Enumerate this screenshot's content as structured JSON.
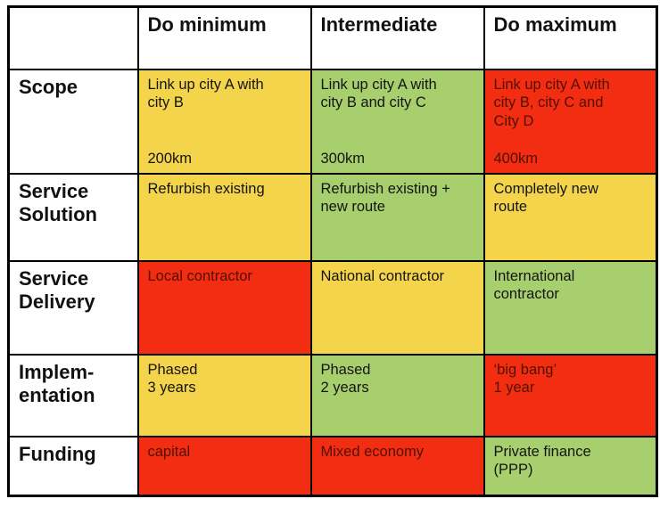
{
  "palette": {
    "yellow": "#F4D44B",
    "green": "#A7CF6E",
    "red": "#F32D11",
    "red_cell_text": "#511005",
    "text": "#141414",
    "border": "#000000",
    "background": "#FFFFFF"
  },
  "table": {
    "columns": [
      "",
      "Do minimum",
      "Intermediate",
      "Do maximum"
    ],
    "rows": [
      {
        "label": "Scope",
        "cells": [
          {
            "text": "Link up city A with\ncity B",
            "footer": "200km",
            "color": "yellow"
          },
          {
            "text": "Link up city A with\ncity B and city C",
            "footer": "300km",
            "color": "green"
          },
          {
            "text": "Link up city A with\ncity B, city C and\nCity D",
            "footer": "400km",
            "color": "red"
          }
        ]
      },
      {
        "label": "Service\nSolution",
        "cells": [
          {
            "text": "Refurbish existing",
            "color": "yellow"
          },
          {
            "text": "Refurbish existing +\nnew route",
            "color": "green"
          },
          {
            "text": "Completely new\nroute",
            "color": "yellow"
          }
        ]
      },
      {
        "label": "Service\nDelivery",
        "cells": [
          {
            "text": "Local contractor",
            "color": "red"
          },
          {
            "text": "National contractor",
            "color": "yellow"
          },
          {
            "text": "International\ncontractor",
            "color": "green"
          }
        ]
      },
      {
        "label": "Implem-\nentation",
        "cells": [
          {
            "text": "Phased\n3 years",
            "color": "yellow"
          },
          {
            "text": "Phased\n2 years",
            "color": "green"
          },
          {
            "text": "‘big bang’\n1 year",
            "color": "red"
          }
        ]
      },
      {
        "label": "Funding",
        "cells": [
          {
            "text": "capital",
            "color": "red"
          },
          {
            "text": "Mixed economy",
            "color": "red"
          },
          {
            "text": "Private finance\n(PPP)",
            "color": "green"
          }
        ]
      }
    ]
  }
}
